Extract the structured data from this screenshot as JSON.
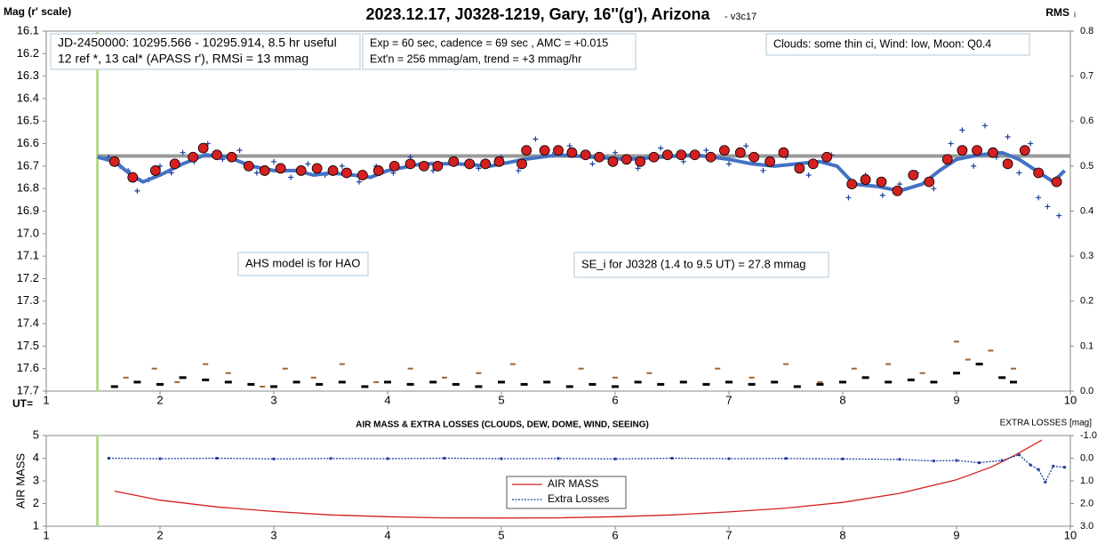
{
  "chart_data": [
    {
      "type": "scatter",
      "title": "2023.12.17, J0328-1219, Gary, 16''(g'), Arizona",
      "subtitle": " - v3c17",
      "y_label": "Mag (r' scale)",
      "y2_label": "RMS",
      "y2_label_sub": "i",
      "x_label": "UT=",
      "xlim": [
        1,
        10
      ],
      "xticks": [
        1,
        2,
        3,
        4,
        5,
        6,
        7,
        8,
        9,
        10
      ],
      "ylim": [
        16.1,
        17.7
      ],
      "y_inverted": true,
      "yticks": [
        16.1,
        16.2,
        16.3,
        16.4,
        16.5,
        16.6,
        16.7,
        16.8,
        16.9,
        {
          "value": 17,
          "label": "17.0"
        },
        17.1,
        17.2,
        17.3,
        17.4,
        17.5,
        17.6,
        17.7
      ],
      "y2lim": [
        0,
        0.8
      ],
      "y2ticks": [
        {
          "value": 0,
          "label": "0.0"
        },
        0.1,
        0.2,
        0.3,
        0.4,
        0.5,
        0.6,
        0.7,
        0.8
      ],
      "start_line": 1.45,
      "annotations": [
        [
          "JD-2450000: 10295.566 - 10295.914, 8.5 hr useful",
          "12 ref *, 13 cal*  (APASS r'), RMSi = 13 mmag"
        ],
        [
          "Exp = 60 sec, cadence = 69 sec , AMC = +0.015",
          "Ext'n = 256 mmag/am, trend = +3 mmag/hr"
        ],
        [
          "Clouds: some thin ci, Wind:  low,  Moon:  Q0.4"
        ],
        [
          "AHS model is for HAO"
        ],
        [
          "SE_i for J0328 (1.4 to 9.5 UT) = 27.8 mmag"
        ]
      ],
      "series": [
        {
          "marker": "line",
          "color": "#999999",
          "x": [
            1.45,
            10
          ],
          "values": [
            16.655,
            16.655
          ]
        },
        {
          "marker": "plus",
          "color": "#1f3f9f",
          "x": [
            1.55,
            1.65,
            1.72,
            1.8,
            1.9,
            2.0,
            2.1,
            2.2,
            2.3,
            2.42,
            2.55,
            2.7,
            2.85,
            3.0,
            3.15,
            3.3,
            3.45,
            3.6,
            3.75,
            3.9,
            4.05,
            4.2,
            4.4,
            4.6,
            4.8,
            5.0,
            5.15,
            5.3,
            5.45,
            5.6,
            5.8,
            6.0,
            6.2,
            6.4,
            6.6,
            6.8,
            7.0,
            7.15,
            7.3,
            7.5,
            7.7,
            7.9,
            8.05,
            8.2,
            8.35,
            8.5,
            8.65,
            8.8,
            8.95,
            9.05,
            9.15,
            9.25,
            9.35,
            9.45,
            9.55,
            9.65,
            9.72,
            9.8,
            9.9
          ],
          "values": [
            16.66,
            16.7,
            16.72,
            16.81,
            16.76,
            16.7,
            16.73,
            16.64,
            16.68,
            16.6,
            16.67,
            16.63,
            16.73,
            16.68,
            16.75,
            16.69,
            16.74,
            16.7,
            16.77,
            16.7,
            16.73,
            16.66,
            16.72,
            16.67,
            16.71,
            16.66,
            16.72,
            16.58,
            16.65,
            16.61,
            16.69,
            16.64,
            16.71,
            16.62,
            16.68,
            16.63,
            16.69,
            16.61,
            16.72,
            16.66,
            16.74,
            16.65,
            16.84,
            16.74,
            16.83,
            16.78,
            16.73,
            16.8,
            16.6,
            16.54,
            16.7,
            16.52,
            16.66,
            16.57,
            16.73,
            16.6,
            16.84,
            16.88,
            16.92
          ]
        },
        {
          "marker": "curve",
          "color": "#4472c4",
          "x": [
            1.45,
            1.6,
            1.75,
            1.85,
            2.0,
            2.2,
            2.4,
            2.6,
            2.8,
            3.0,
            3.2,
            3.35,
            3.5,
            3.7,
            3.85,
            4.0,
            4.3,
            4.6,
            4.9,
            5.2,
            5.5,
            5.8,
            6.1,
            6.4,
            6.7,
            7.0,
            7.2,
            7.4,
            7.6,
            7.8,
            7.95,
            8.1,
            8.3,
            8.5,
            8.7,
            8.85,
            9.0,
            9.2,
            9.4,
            9.55,
            9.7,
            9.85,
            9.95
          ],
          "values": [
            16.66,
            16.68,
            16.74,
            16.77,
            16.74,
            16.69,
            16.65,
            16.66,
            16.7,
            16.72,
            16.72,
            16.74,
            16.73,
            16.74,
            16.75,
            16.72,
            16.69,
            16.69,
            16.7,
            16.67,
            16.65,
            16.66,
            16.67,
            16.66,
            16.65,
            16.67,
            16.69,
            16.7,
            16.69,
            16.68,
            16.7,
            16.78,
            16.79,
            16.81,
            16.78,
            16.72,
            16.67,
            16.65,
            16.64,
            16.67,
            16.72,
            16.77,
            16.72
          ]
        },
        {
          "marker": "circle",
          "color": "#d42020",
          "x": [
            1.6,
            1.76,
            1.96,
            2.13,
            2.29,
            2.38,
            2.5,
            2.63,
            2.78,
            2.92,
            3.06,
            3.24,
            3.38,
            3.52,
            3.64,
            3.78,
            3.92,
            4.06,
            4.2,
            4.32,
            4.44,
            4.58,
            4.72,
            4.86,
            4.98,
            5.18,
            5.22,
            5.38,
            5.5,
            5.62,
            5.74,
            5.86,
            5.98,
            6.1,
            6.22,
            6.34,
            6.46,
            6.58,
            6.7,
            6.84,
            6.96,
            7.1,
            7.22,
            7.36,
            7.48,
            7.62,
            7.74,
            7.86,
            8.08,
            8.2,
            8.34,
            8.48,
            8.62,
            8.76,
            8.92,
            9.05,
            9.18,
            9.32,
            9.45,
            9.6,
            9.72,
            9.88
          ],
          "values": [
            16.68,
            16.75,
            16.72,
            16.69,
            16.66,
            16.62,
            16.65,
            16.66,
            16.7,
            16.72,
            16.71,
            16.72,
            16.71,
            16.72,
            16.73,
            16.74,
            16.72,
            16.7,
            16.69,
            16.7,
            16.7,
            16.68,
            16.69,
            16.69,
            16.68,
            16.69,
            16.63,
            16.63,
            16.63,
            16.64,
            16.65,
            16.66,
            16.68,
            16.67,
            16.68,
            16.66,
            16.65,
            16.65,
            16.65,
            16.66,
            16.63,
            16.64,
            16.66,
            16.68,
            16.64,
            16.71,
            16.69,
            16.66,
            16.78,
            16.76,
            16.77,
            16.81,
            16.74,
            16.77,
            16.67,
            16.63,
            16.63,
            16.64,
            16.69,
            16.63,
            16.73,
            16.77
          ]
        },
        {
          "marker": "dash",
          "color": "#a0622d",
          "axis": "y2",
          "x": [
            1.7,
            1.95,
            2.15,
            2.4,
            2.6,
            2.9,
            3.1,
            3.35,
            3.6,
            3.9,
            4.2,
            4.5,
            4.8,
            5.1,
            5.4,
            5.7,
            6.0,
            6.3,
            6.6,
            6.9,
            7.2,
            7.5,
            7.8,
            8.1,
            8.4,
            8.7,
            9.0,
            9.1,
            9.3,
            9.5
          ],
          "values": [
            0.03,
            0.05,
            0.02,
            0.06,
            0.04,
            0.01,
            0.05,
            0.03,
            0.06,
            0.02,
            0.05,
            0.03,
            0.04,
            0.06,
            0.02,
            0.05,
            0.03,
            0.04,
            0.02,
            0.05,
            0.03,
            0.06,
            0.02,
            0.05,
            0.06,
            0.04,
            0.11,
            0.07,
            0.09,
            0.05
          ]
        },
        {
          "marker": "dot",
          "color": "#000000",
          "axis": "y2",
          "x": [
            1.6,
            1.8,
            2.0,
            2.2,
            2.4,
            2.6,
            2.8,
            3.0,
            3.2,
            3.4,
            3.6,
            3.8,
            4.0,
            4.2,
            4.4,
            4.6,
            4.8,
            5.0,
            5.2,
            5.4,
            5.6,
            5.8,
            6.0,
            6.2,
            6.4,
            6.6,
            6.8,
            7.0,
            7.2,
            7.4,
            7.6,
            7.8,
            8.0,
            8.2,
            8.4,
            8.6,
            8.8,
            9.0,
            9.2,
            9.4,
            9.5
          ],
          "values": [
            0.01,
            0.02,
            0.015,
            0.03,
            0.025,
            0.02,
            0.015,
            0.01,
            0.02,
            0.015,
            0.02,
            0.01,
            0.02,
            0.015,
            0.02,
            0.015,
            0.01,
            0.02,
            0.015,
            0.02,
            0.01,
            0.015,
            0.01,
            0.02,
            0.015,
            0.02,
            0.015,
            0.02,
            0.015,
            0.02,
            0.01,
            0.015,
            0.02,
            0.03,
            0.02,
            0.025,
            0.02,
            0.04,
            0.06,
            0.03,
            0.02
          ]
        }
      ]
    },
    {
      "type": "line",
      "title": "AIR MASS & EXTRA LOSSES (CLOUDS, DEW, DOME, WIND, SEEING)",
      "y_label": "AIR MASS",
      "y2_label": "EXTRA LOSSES [mag]",
      "xlim": [
        1,
        10
      ],
      "xticks": [
        1,
        2,
        3,
        4,
        5,
        6,
        7,
        8,
        9,
        10
      ],
      "ylim": [
        1,
        5
      ],
      "yticks": [
        1,
        2,
        3,
        4,
        5
      ],
      "y2lim": [
        -1,
        3
      ],
      "y2_inverted": true,
      "y2ticks": [
        {
          "value": -1,
          "label": "-1.0"
        },
        {
          "value": 0,
          "label": "0.0"
        },
        {
          "value": 1,
          "label": "1.0"
        },
        {
          "value": 2,
          "label": "2.0"
        },
        {
          "value": 3,
          "label": "3.0"
        }
      ],
      "start_line": 1.45,
      "series": [
        {
          "name": "AIR MASS",
          "color": "#d42020",
          "marker": "curve",
          "x": [
            1.6,
            2,
            2.5,
            3,
            3.5,
            4,
            4.5,
            5,
            5.5,
            6,
            6.5,
            7,
            7.5,
            8,
            8.5,
            9,
            9.3,
            9.5,
            9.75
          ],
          "values": [
            2.55,
            2.15,
            1.85,
            1.65,
            1.5,
            1.42,
            1.37,
            1.36,
            1.37,
            1.42,
            1.5,
            1.63,
            1.8,
            2.05,
            2.45,
            3.05,
            3.6,
            4.1,
            4.8
          ]
        },
        {
          "name": "Extra Losses",
          "color": "#1f3f9f",
          "marker": "dashed",
          "axis": "y2",
          "x": [
            1.55,
            2,
            2.5,
            3,
            3.5,
            4,
            4.5,
            5,
            5.5,
            6,
            6.5,
            7,
            7.5,
            8,
            8.5,
            8.8,
            9.0,
            9.2,
            9.4,
            9.55,
            9.65,
            9.72,
            9.78,
            9.85,
            9.95
          ],
          "values": [
            0,
            0.02,
            0,
            0.03,
            0.01,
            0.02,
            0,
            0.02,
            0.01,
            0.03,
            0,
            0.02,
            0.01,
            0.03,
            0.05,
            0.12,
            0.1,
            0.2,
            0.1,
            -0.15,
            0.3,
            0.5,
            1.05,
            0.35,
            0.4
          ]
        }
      ]
    }
  ]
}
